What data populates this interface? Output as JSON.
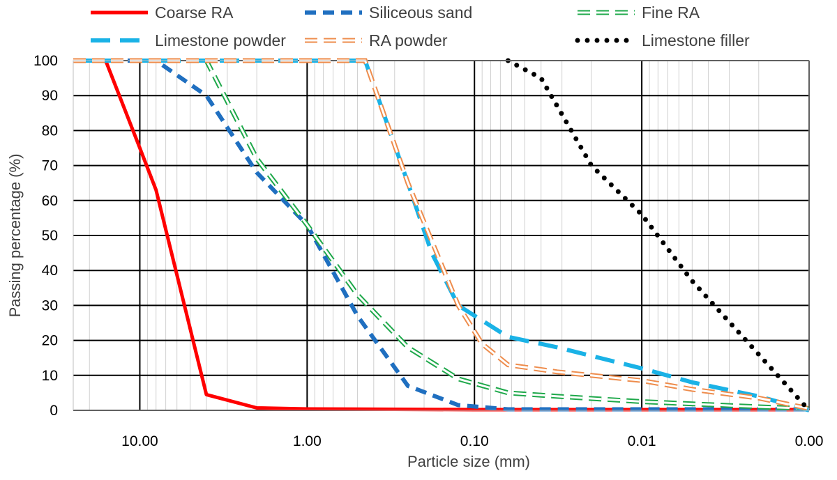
{
  "chart_data": {
    "type": "line",
    "xlabel": "Particle size (mm)",
    "ylabel": "Passing percentage (%)",
    "x_scale": "log",
    "x_reversed": true,
    "xlim": [
      25,
      0.001
    ],
    "ylim": [
      0,
      100
    ],
    "x_ticks": [
      10,
      1,
      0.1,
      0.01,
      0.001
    ],
    "x_tick_labels": [
      "10.00",
      "1.00",
      "0.10",
      "0.01",
      "0.00"
    ],
    "y_ticks": [
      0,
      10,
      20,
      30,
      40,
      50,
      60,
      70,
      80,
      90,
      100
    ],
    "y_tick_labels": [
      "0",
      "10",
      "20",
      "30",
      "40",
      "50",
      "60",
      "70",
      "80",
      "90",
      "100"
    ],
    "grid": true,
    "legend_position": "top",
    "series": [
      {
        "name": "Coarse RA",
        "color": "#ff0000",
        "style": "solid",
        "points": [
          [
            16,
            100
          ],
          [
            10,
            75
          ],
          [
            8,
            63
          ],
          [
            4,
            4.5
          ],
          [
            2,
            0.7
          ],
          [
            1,
            0.4
          ],
          [
            0.1,
            0.2
          ],
          [
            0.001,
            0.2
          ]
        ]
      },
      {
        "name": "Siliceous sand",
        "color": "#1f6fc0",
        "style": "dashed",
        "points": [
          [
            25,
            100
          ],
          [
            8,
            100
          ],
          [
            4,
            90
          ],
          [
            2,
            68
          ],
          [
            1,
            53
          ],
          [
            0.5,
            27
          ],
          [
            0.25,
            7
          ],
          [
            0.125,
            1.5
          ],
          [
            0.063,
            0.3
          ],
          [
            0.001,
            0.3
          ]
        ]
      },
      {
        "name": "Fine RA",
        "color": "#1ea84a",
        "style": "hollow-dash",
        "points": [
          [
            25,
            100
          ],
          [
            4,
            100
          ],
          [
            2,
            72
          ],
          [
            1,
            53
          ],
          [
            0.5,
            33
          ],
          [
            0.25,
            18
          ],
          [
            0.125,
            9
          ],
          [
            0.063,
            5
          ],
          [
            0.032,
            4
          ],
          [
            0.01,
            2.5
          ],
          [
            0.002,
            1
          ],
          [
            0.001,
            0.5
          ]
        ]
      },
      {
        "name": "Limestone powder",
        "color": "#1ab2e6",
        "style": "long-dash",
        "points": [
          [
            25,
            100
          ],
          [
            0.45,
            100
          ],
          [
            0.25,
            65
          ],
          [
            0.18,
            45
          ],
          [
            0.125,
            30
          ],
          [
            0.063,
            21
          ],
          [
            0.032,
            18
          ],
          [
            0.01,
            12
          ],
          [
            0.005,
            8
          ],
          [
            0.002,
            4
          ],
          [
            0.001,
            0
          ]
        ]
      },
      {
        "name": "RA powder",
        "color": "#ee8c4c",
        "style": "hollow-dash",
        "points": [
          [
            25,
            100
          ],
          [
            0.45,
            100
          ],
          [
            0.25,
            65
          ],
          [
            0.125,
            30
          ],
          [
            0.09,
            19
          ],
          [
            0.063,
            13
          ],
          [
            0.032,
            11
          ],
          [
            0.01,
            8.5
          ],
          [
            0.005,
            6
          ],
          [
            0.002,
            3.5
          ],
          [
            0.001,
            0.5
          ]
        ]
      },
      {
        "name": "Limestone filler",
        "color": "#000000",
        "style": "dotted",
        "points": [
          [
            0.063,
            100
          ],
          [
            0.04,
            95
          ],
          [
            0.02,
            70
          ],
          [
            0.01,
            56
          ],
          [
            0.005,
            37
          ],
          [
            0.002,
            16
          ],
          [
            0.001,
            0
          ]
        ]
      }
    ]
  }
}
